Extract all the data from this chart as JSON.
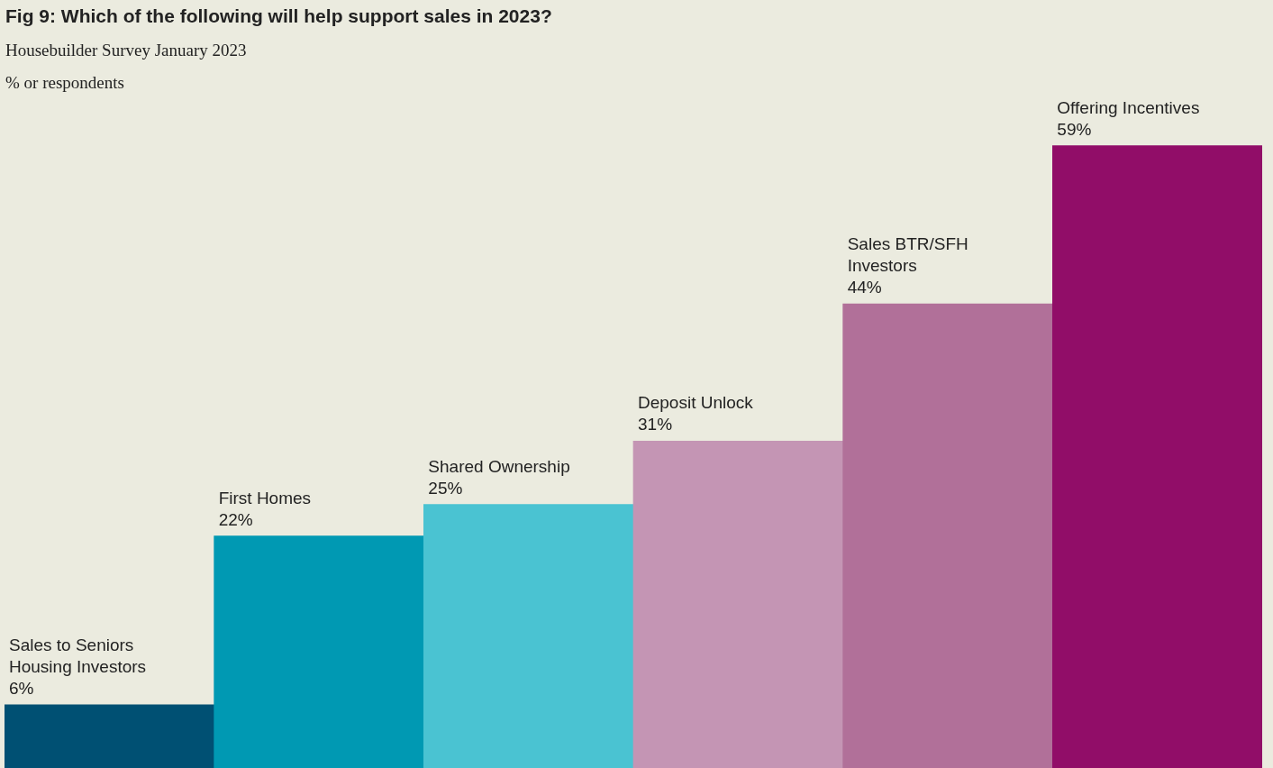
{
  "chart_data": {
    "type": "bar",
    "title": "Fig 9: Which of the following will help support sales in 2023?",
    "subtitle": "Housebuilder Survey January 2023",
    "ylabel": "% or respondents",
    "categories": [
      "Sales to Seniors Housing Investors",
      "First Homes",
      "Shared Ownership",
      "Deposit Unlock",
      "Sales BTR/SFH Investors",
      "Offering Incentives"
    ],
    "values": [
      6,
      22,
      25,
      31,
      44,
      59
    ],
    "colors": [
      "#005073",
      "#0099b3",
      "#4ac3d2",
      "#c495b4",
      "#b17099",
      "#910d68"
    ],
    "value_labels": [
      "6%",
      "22%",
      "25%",
      "31%",
      "44%",
      "59%"
    ],
    "legend": false
  }
}
